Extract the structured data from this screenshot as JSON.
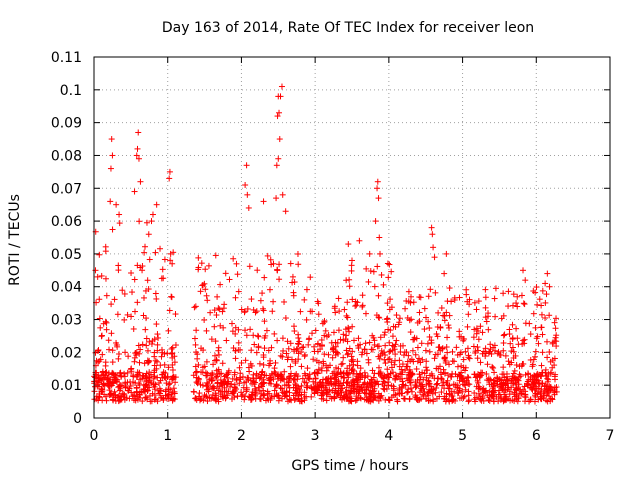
{
  "chart_data": {
    "type": "scatter",
    "title": "Day 163 of 2014, Rate Of TEC Index for receiver leon",
    "xlabel": "GPS time / hours",
    "ylabel": "ROTI / TECUs",
    "xlim": [
      0,
      7
    ],
    "ylim": [
      0,
      0.11
    ],
    "grid": true,
    "marker": "+",
    "color": "#ff0000",
    "x_ticks": [
      "0",
      "1",
      "2",
      "3",
      "4",
      "5",
      "6",
      "7"
    ],
    "y_ticks": [
      "0",
      "0.01",
      "0.02",
      "0.03",
      "0.04",
      "0.05",
      "0.06",
      "0.07",
      "0.08",
      "0.09",
      "0.1",
      "0.11"
    ],
    "series": [
      {
        "name": "ROTI",
        "peaks": [
          {
            "x": 0.24,
            "y": 0.085
          },
          {
            "x": 0.25,
            "y": 0.08
          },
          {
            "x": 0.23,
            "y": 0.076
          },
          {
            "x": 0.22,
            "y": 0.066
          },
          {
            "x": 0.6,
            "y": 0.087
          },
          {
            "x": 0.59,
            "y": 0.082
          },
          {
            "x": 0.58,
            "y": 0.08
          },
          {
            "x": 0.61,
            "y": 0.079
          },
          {
            "x": 0.63,
            "y": 0.072
          },
          {
            "x": 0.55,
            "y": 0.069
          },
          {
            "x": 0.3,
            "y": 0.065
          },
          {
            "x": 0.34,
            "y": 0.062
          },
          {
            "x": 0.85,
            "y": 0.065
          },
          {
            "x": 0.8,
            "y": 0.062
          },
          {
            "x": 0.78,
            "y": 0.06
          },
          {
            "x": 1.03,
            "y": 0.075
          },
          {
            "x": 1.02,
            "y": 0.073
          },
          {
            "x": 1.04,
            "y": 0.05
          },
          {
            "x": 1.06,
            "y": 0.047
          },
          {
            "x": 2.07,
            "y": 0.077
          },
          {
            "x": 2.05,
            "y": 0.071
          },
          {
            "x": 2.08,
            "y": 0.068
          },
          {
            "x": 2.1,
            "y": 0.064
          },
          {
            "x": 2.55,
            "y": 0.101
          },
          {
            "x": 2.53,
            "y": 0.098
          },
          {
            "x": 2.5,
            "y": 0.098
          },
          {
            "x": 2.51,
            "y": 0.093
          },
          {
            "x": 2.49,
            "y": 0.092
          },
          {
            "x": 2.52,
            "y": 0.085
          },
          {
            "x": 2.48,
            "y": 0.077
          },
          {
            "x": 2.5,
            "y": 0.079
          },
          {
            "x": 2.47,
            "y": 0.067
          },
          {
            "x": 2.3,
            "y": 0.066
          },
          {
            "x": 2.56,
            "y": 0.068
          },
          {
            "x": 2.6,
            "y": 0.063
          },
          {
            "x": 3.85,
            "y": 0.072
          },
          {
            "x": 3.84,
            "y": 0.07
          },
          {
            "x": 3.86,
            "y": 0.067
          },
          {
            "x": 3.82,
            "y": 0.06
          },
          {
            "x": 3.87,
            "y": 0.055
          },
          {
            "x": 3.88,
            "y": 0.05
          },
          {
            "x": 3.45,
            "y": 0.053
          },
          {
            "x": 3.6,
            "y": 0.054
          },
          {
            "x": 3.74,
            "y": 0.05
          },
          {
            "x": 3.5,
            "y": 0.048
          },
          {
            "x": 4.58,
            "y": 0.058
          },
          {
            "x": 4.59,
            "y": 0.056
          },
          {
            "x": 4.6,
            "y": 0.052
          },
          {
            "x": 4.62,
            "y": 0.049
          },
          {
            "x": 4.78,
            "y": 0.05
          },
          {
            "x": 4.75,
            "y": 0.044
          },
          {
            "x": 5.82,
            "y": 0.045
          },
          {
            "x": 5.85,
            "y": 0.042
          },
          {
            "x": 6.15,
            "y": 0.044
          },
          {
            "x": 6.12,
            "y": 0.041
          },
          {
            "x": 6.18,
            "y": 0.04
          },
          {
            "x": 5.55,
            "y": 0.038
          },
          {
            "x": 0.02,
            "y": 0.045
          },
          {
            "x": 0.05,
            "y": 0.043
          }
        ],
        "segments": [
          {
            "x_start": 0.0,
            "x_end": 1.12,
            "y_low": 0.005,
            "y_high": 0.06,
            "density": 420
          },
          {
            "x_start": 1.35,
            "x_end": 2.95,
            "y_low": 0.005,
            "y_high": 0.05,
            "density": 520
          },
          {
            "x_start": 2.95,
            "x_end": 3.3,
            "y_low": 0.005,
            "y_high": 0.036,
            "density": 140
          },
          {
            "x_start": 3.3,
            "x_end": 4.05,
            "y_low": 0.005,
            "y_high": 0.048,
            "density": 320
          },
          {
            "x_start": 4.05,
            "x_end": 5.1,
            "y_low": 0.005,
            "y_high": 0.04,
            "density": 360
          },
          {
            "x_start": 5.15,
            "x_end": 6.28,
            "y_low": 0.005,
            "y_high": 0.04,
            "density": 430
          }
        ],
        "baseline": {
          "y_low": 0.005,
          "y_mid": 0.012,
          "y_high": 0.02
        }
      }
    ]
  }
}
